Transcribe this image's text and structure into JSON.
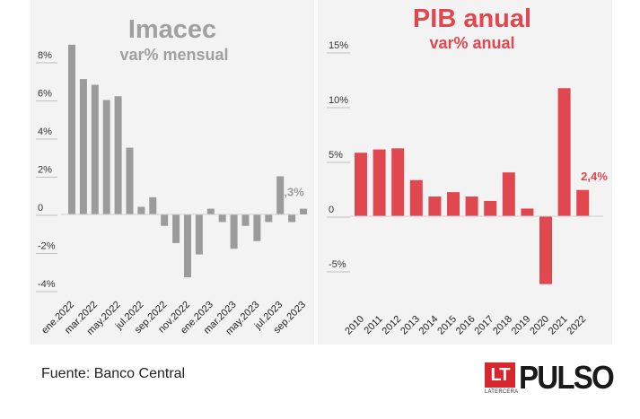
{
  "chart_data": [
    {
      "type": "bar",
      "title": "Imacec",
      "subtitle": "var% mensual",
      "categories": [
        "ene.2022",
        "feb.2022",
        "mar.2022",
        "abr.2022",
        "may.2022",
        "jun.2022",
        "jul.2022",
        "ago.2022",
        "sep.2022",
        "oct.2022",
        "nov.2022",
        "dic.2022",
        "ene.2023",
        "feb.2023",
        "mar.2023",
        "abr.2023",
        "may.2023",
        "jun.2023",
        "jul.2023",
        "ago.2023",
        "sep.2023"
      ],
      "tick_labels": [
        "ene.2022",
        "mar.2022",
        "may.2022",
        "jul.2022",
        "sep.2022",
        "nov.2022",
        "ene.2023",
        "mar.2023",
        "may.2023",
        "jul.2023",
        "sep.2023"
      ],
      "values": [
        8.9,
        7.1,
        6.8,
        6.0,
        6.2,
        3.5,
        0.4,
        0.9,
        -0.6,
        -1.5,
        -3.3,
        -2.1,
        0.3,
        -0.4,
        -1.8,
        -0.6,
        -1.4,
        -0.4,
        2.0,
        -0.4,
        0.3
      ],
      "y_ticks": [
        "8%",
        "6%",
        "4%",
        "2%",
        "0",
        "-2%",
        "-4%"
      ],
      "y_tick_values": [
        8,
        6,
        4,
        2,
        0,
        -2,
        -4
      ],
      "ylim": [
        -4,
        9
      ],
      "annotation": "0,3%",
      "color": "#9b9b9b",
      "title_color": "#a0a0a0"
    },
    {
      "type": "bar",
      "title": "PIB anual",
      "subtitle": "var% anual",
      "categories": [
        "2010",
        "2011",
        "2012",
        "2013",
        "2014",
        "2015",
        "2016",
        "2017",
        "2018",
        "2019",
        "2020",
        "2021",
        "2022"
      ],
      "values": [
        5.8,
        6.1,
        6.2,
        3.3,
        1.8,
        2.2,
        1.8,
        1.4,
        4.0,
        0.7,
        -6.2,
        11.7,
        2.4
      ],
      "y_ticks": [
        "15%",
        "10%",
        "5%",
        "0",
        "-5%"
      ],
      "y_tick_values": [
        15,
        10,
        5,
        0,
        -5
      ],
      "ylim": [
        -6.5,
        15
      ],
      "annotation": "2,4%",
      "color": "#e0474f",
      "title_color": "#e0474f"
    }
  ],
  "footer": {
    "source": "Fuente: Banco Central",
    "logo_box": "LT",
    "logo_sub": "LATERCERA",
    "logo_word": "PULSO"
  }
}
